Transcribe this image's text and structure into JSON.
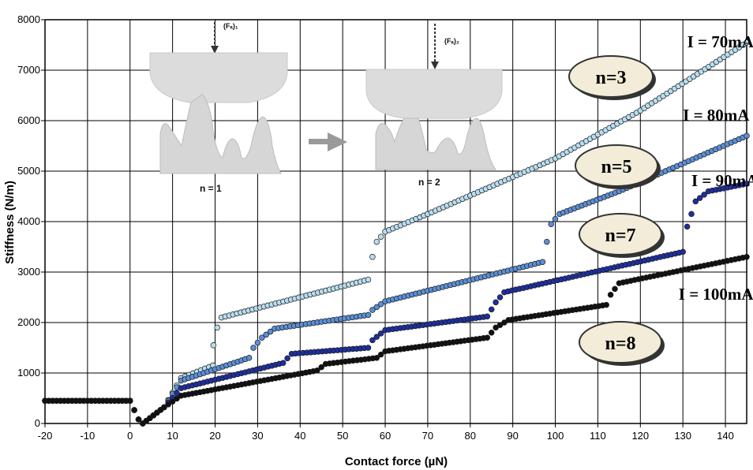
{
  "chart_data": {
    "type": "scatter",
    "title": "",
    "xlabel": "Contact force (µN)",
    "ylabel": "Stiffness (N/m)",
    "xlim": [
      -20,
      145
    ],
    "ylim": [
      0,
      8000
    ],
    "x_ticks": [
      "-20",
      "-10",
      "0",
      "10",
      "20",
      "30",
      "40",
      "50",
      "60",
      "70",
      "80",
      "90",
      "100",
      "110",
      "120",
      "130",
      "140"
    ],
    "y_ticks": [
      "0",
      "1000",
      "2000",
      "3000",
      "4000",
      "5000",
      "6000",
      "7000",
      "8000"
    ],
    "grid": true,
    "series": [
      {
        "label": "I = 70mA",
        "tag": "n=3",
        "color": "#b8ddf0",
        "knots": [
          [
            -20,
            450
          ],
          [
            0,
            450
          ],
          [
            2,
            80
          ],
          [
            3,
            0
          ],
          [
            8,
            320
          ],
          [
            12,
            900
          ],
          [
            19.5,
            1150
          ],
          [
            19.6,
            1550
          ],
          [
            20.5,
            1900
          ],
          [
            21.5,
            2100
          ],
          [
            56,
            2850
          ],
          [
            57,
            3300
          ],
          [
            58,
            3600
          ],
          [
            60,
            3800
          ],
          [
            70,
            4150
          ],
          [
            100,
            5250
          ],
          [
            120,
            6200
          ],
          [
            145,
            7550
          ]
        ]
      },
      {
        "label": "I = 80mA",
        "tag": "n=5",
        "color": "#5b8fd6",
        "knots": [
          [
            -20,
            450
          ],
          [
            0,
            450
          ],
          [
            2,
            80
          ],
          [
            3,
            0
          ],
          [
            8,
            320
          ],
          [
            12,
            850
          ],
          [
            28,
            1300
          ],
          [
            29,
            1500
          ],
          [
            31,
            1700
          ],
          [
            34,
            1880
          ],
          [
            56,
            2150
          ],
          [
            57,
            2250
          ],
          [
            60,
            2420
          ],
          [
            97,
            3200
          ],
          [
            98,
            3600
          ],
          [
            99,
            3950
          ],
          [
            101,
            4150
          ],
          [
            115,
            4600
          ],
          [
            145,
            5700
          ]
        ]
      },
      {
        "label": "I = 90mA",
        "tag": "n=7",
        "color": "#1f2f9e",
        "knots": [
          [
            -20,
            450
          ],
          [
            0,
            450
          ],
          [
            2,
            80
          ],
          [
            3,
            0
          ],
          [
            8,
            320
          ],
          [
            12,
            700
          ],
          [
            36,
            1200
          ],
          [
            38,
            1380
          ],
          [
            56,
            1500
          ],
          [
            57,
            1650
          ],
          [
            60,
            1850
          ],
          [
            84,
            2120
          ],
          [
            86,
            2400
          ],
          [
            88,
            2600
          ],
          [
            130,
            3400
          ],
          [
            131,
            3900
          ],
          [
            133,
            4400
          ],
          [
            136,
            4600
          ],
          [
            145,
            4750
          ]
        ]
      },
      {
        "label": "I = 100mA",
        "tag": "n=8",
        "color": "#111111",
        "knots": [
          [
            -20,
            450
          ],
          [
            0,
            450
          ],
          [
            2,
            80
          ],
          [
            3,
            0
          ],
          [
            8,
            320
          ],
          [
            12,
            550
          ],
          [
            44,
            1050
          ],
          [
            46,
            1180
          ],
          [
            58,
            1300
          ],
          [
            60,
            1430
          ],
          [
            84,
            1700
          ],
          [
            86,
            1900
          ],
          [
            89,
            2050
          ],
          [
            112,
            2350
          ],
          [
            113,
            2550
          ],
          [
            115,
            2780
          ],
          [
            145,
            3300
          ]
        ]
      }
    ],
    "annotations": [
      {
        "text": "I = 70mA",
        "x": 131,
        "y": 7450
      },
      {
        "text": "I = 80mA",
        "x": 130,
        "y": 6000
      },
      {
        "text": "I = 90mA",
        "x": 132,
        "y": 4700
      },
      {
        "text": "I = 100mA",
        "x": 129,
        "y": 2450
      }
    ],
    "inset": {
      "force_left": "(Fₐ)₁",
      "force_right": "(Fₐ)₂",
      "label_left": "n = 1",
      "label_right": "n = 2"
    }
  }
}
